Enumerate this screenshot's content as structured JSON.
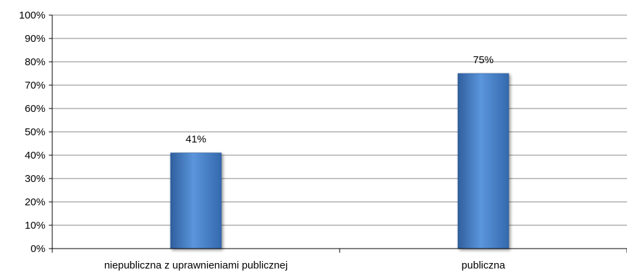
{
  "chart_data": {
    "type": "bar",
    "title": "",
    "xlabel": "",
    "ylabel": "",
    "categories": [
      "niepubliczna z uprawnieniami publicznej",
      "publiczna"
    ],
    "values": [
      41,
      75
    ],
    "data_labels": [
      "41%",
      "75%"
    ],
    "ylim": [
      0,
      100
    ],
    "y_ticks": [
      0,
      10,
      20,
      30,
      40,
      50,
      60,
      70,
      80,
      90,
      100
    ],
    "y_tick_labels": [
      "0%",
      "10%",
      "20%",
      "30%",
      "40%",
      "50%",
      "60%",
      "70%",
      "80%",
      "90%",
      "100%"
    ],
    "grid": true,
    "legend": "none",
    "colors": {
      "bar": "#4a7ebb",
      "bar_light": "#5b95dc",
      "bar_dark": "#2f5f9e",
      "grid": "#868686",
      "axis": "#000000"
    }
  }
}
